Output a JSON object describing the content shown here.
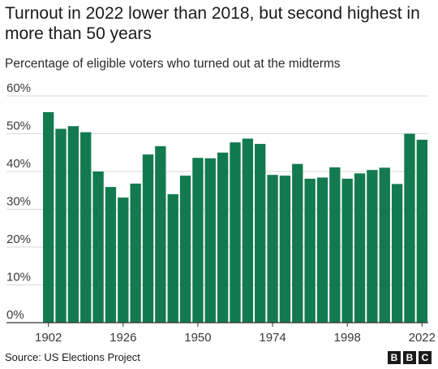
{
  "header": {
    "title": "Turnout in 2022 lower than 2018, but second highest in more than 50 years",
    "subtitle": "Percentage of eligible voters who turned out at the midterms"
  },
  "footer": {
    "source": "Source: US Elections Project",
    "logo_letters": [
      "B",
      "B",
      "C"
    ]
  },
  "colors": {
    "bar": "#137a4f",
    "grid": "#d9d9d9",
    "baseline": "#333333"
  },
  "chart_data": {
    "type": "bar",
    "title": "Turnout in 2022 lower than 2018, but second highest in more than 50 years",
    "subtitle": "Percentage of eligible voters who turned out at the midterms",
    "xlabel": "",
    "ylabel": "",
    "x_unit": "year",
    "y_unit": "%",
    "ylim": [
      0,
      60
    ],
    "yticks": [
      0,
      10,
      20,
      30,
      40,
      50,
      60
    ],
    "ytick_labels": [
      "0%",
      "10%",
      "20%",
      "30%",
      "40%",
      "50%",
      "60%"
    ],
    "xticks": [
      1902,
      1926,
      1950,
      1974,
      1998,
      2022
    ],
    "xtick_labels": [
      "1902",
      "1926",
      "1950",
      "1974",
      "1998",
      "2022"
    ],
    "grid": true,
    "categories": [
      1902,
      1906,
      1910,
      1914,
      1918,
      1922,
      1926,
      1930,
      1934,
      1938,
      1942,
      1946,
      1950,
      1954,
      1958,
      1962,
      1966,
      1970,
      1974,
      1978,
      1982,
      1986,
      1990,
      1994,
      1998,
      2002,
      2006,
      2010,
      2014,
      2018,
      2022
    ],
    "values": [
      55.7,
      51.3,
      52.0,
      50.4,
      40.0,
      35.9,
      33.1,
      36.8,
      44.5,
      46.7,
      34.0,
      38.9,
      43.6,
      43.5,
      45.0,
      47.7,
      48.7,
      47.3,
      39.1,
      38.9,
      42.0,
      38.1,
      38.4,
      41.1,
      38.1,
      39.5,
      40.4,
      41.0,
      36.7,
      50.0,
      48.4
    ]
  }
}
